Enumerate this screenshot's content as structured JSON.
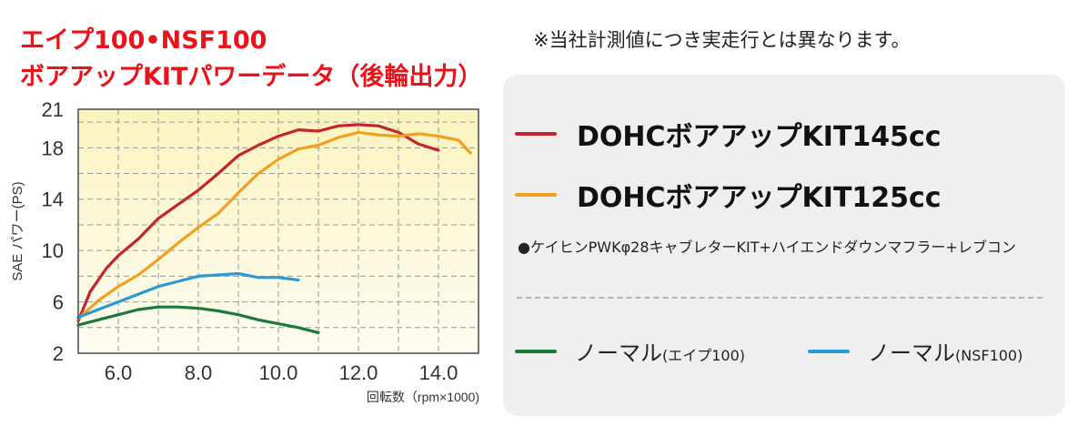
{
  "title_line1": "エイプ100•NSF100",
  "title_line2": "ボアアップKITパワーデータ（後輪出力）",
  "note": "※当社計測値につき実走行とは異なります。",
  "legend": {
    "kit145": {
      "label": "DOHCボアアップKIT145cc",
      "color": "#c0262c"
    },
    "kit125": {
      "label": "DOHCボアアップKIT125cc",
      "color": "#f2a01e"
    },
    "parts": "●ケイヒンPWKφ28キャブレターKIT+ハイエンドダウンマフラー+レブコン",
    "normal_ape": {
      "main": "ノーマル",
      "sub": "(エイプ100)",
      "color": "#1a7a3c"
    },
    "normal_nsf": {
      "main": "ノーマル",
      "sub": "(NSF100)",
      "color": "#2a9ad6"
    }
  },
  "chart_data": {
    "type": "line",
    "xlabel": "回転数（rpm×1000)",
    "ylabel": "SAE パワー(PS)",
    "xlim": [
      5.0,
      15.0
    ],
    "ylim": [
      2,
      21
    ],
    "x_ticks": [
      "6.0",
      "8.0",
      "10.0",
      "12.0",
      "14.0"
    ],
    "x_tick_values": [
      6,
      8,
      10,
      12,
      14
    ],
    "y_ticks": [
      "2",
      "6",
      "10",
      "14",
      "18",
      "21"
    ],
    "y_tick_values": [
      2,
      6,
      10,
      14,
      18,
      21
    ],
    "grid": true,
    "series": [
      {
        "name": "DOHCボアアップKIT145cc",
        "color": "#c0262c",
        "x": [
          5.0,
          5.3,
          5.7,
          6.0,
          6.5,
          7.0,
          7.5,
          8.0,
          8.5,
          9.0,
          9.5,
          10.0,
          10.5,
          11.0,
          11.5,
          12.0,
          12.5,
          13.0,
          13.5,
          14.0
        ],
        "y": [
          4.5,
          6.8,
          8.6,
          9.6,
          10.9,
          12.5,
          13.6,
          14.7,
          16.0,
          17.4,
          18.2,
          18.9,
          19.4,
          19.3,
          19.7,
          19.8,
          19.7,
          19.2,
          18.3,
          17.8
        ]
      },
      {
        "name": "DOHCボアアップKIT125cc",
        "color": "#f2a01e",
        "x": [
          5.0,
          5.5,
          6.0,
          6.5,
          7.0,
          7.5,
          8.0,
          8.5,
          9.0,
          9.5,
          10.0,
          10.5,
          11.0,
          11.5,
          12.0,
          12.5,
          13.0,
          13.5,
          14.0,
          14.5,
          14.8
        ],
        "y": [
          4.7,
          6.1,
          7.2,
          8.1,
          9.3,
          10.6,
          11.8,
          12.9,
          14.5,
          16.0,
          17.1,
          17.9,
          18.2,
          18.8,
          19.2,
          19.0,
          18.9,
          19.1,
          18.9,
          18.6,
          17.6
        ]
      },
      {
        "name": "ノーマル(NSF100)",
        "color": "#2a9ad6",
        "x": [
          5.0,
          5.5,
          6.0,
          6.5,
          7.0,
          7.5,
          8.0,
          8.5,
          9.0,
          9.5,
          10.0,
          10.5
        ],
        "y": [
          4.8,
          5.4,
          6.0,
          6.6,
          7.2,
          7.6,
          8.0,
          8.1,
          8.2,
          7.9,
          7.9,
          7.7
        ]
      },
      {
        "name": "ノーマル(エイプ100)",
        "color": "#1a7a3c",
        "x": [
          5.0,
          5.5,
          6.0,
          6.5,
          7.0,
          7.5,
          8.0,
          8.5,
          9.0,
          9.5,
          10.0,
          10.5,
          11.0
        ],
        "y": [
          4.2,
          4.6,
          5.0,
          5.4,
          5.6,
          5.6,
          5.5,
          5.3,
          5.0,
          4.6,
          4.3,
          4.0,
          3.6
        ]
      }
    ]
  }
}
